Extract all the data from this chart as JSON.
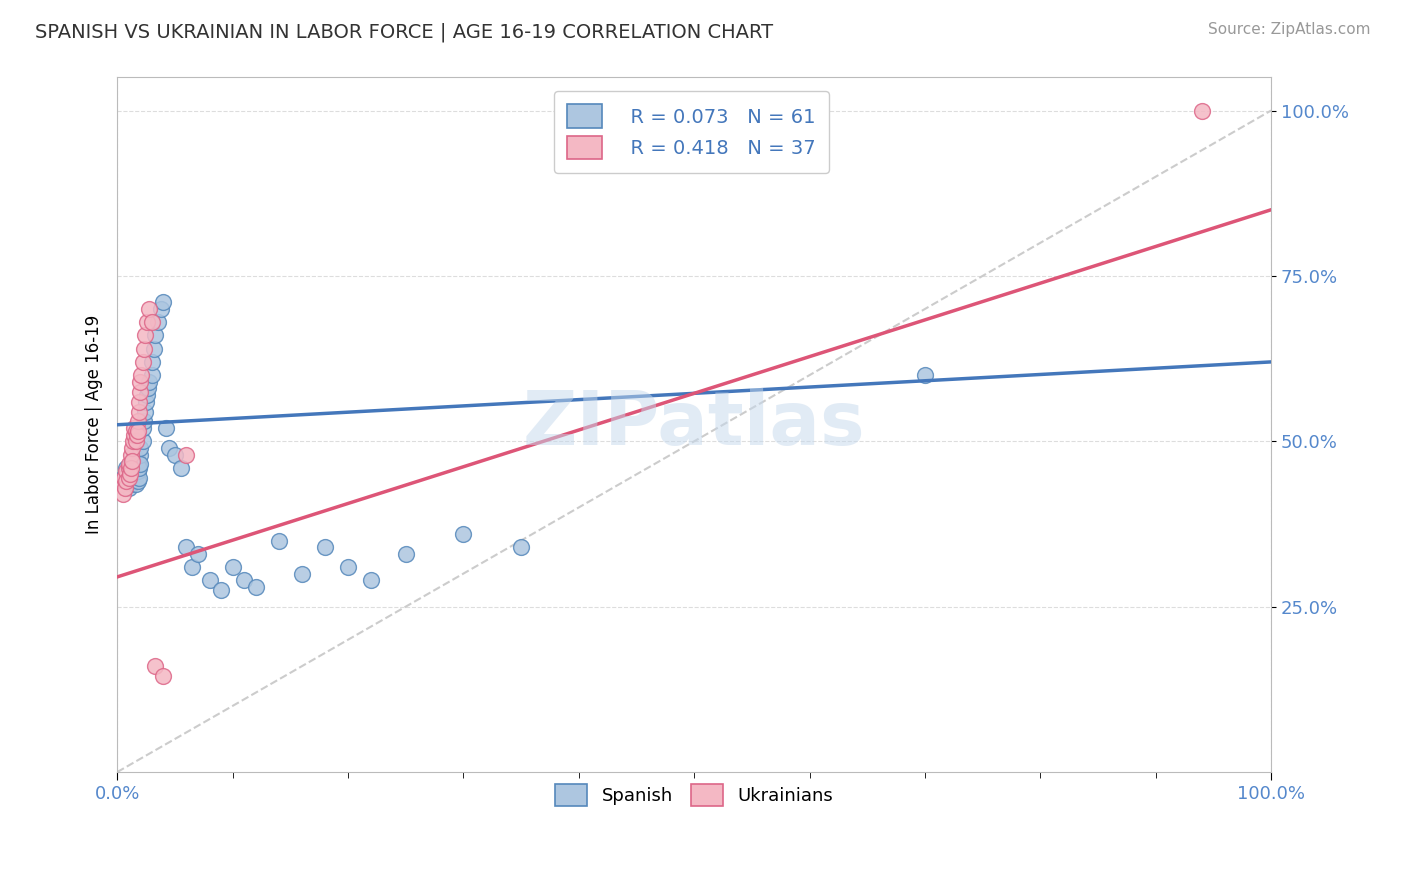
{
  "title": "SPANISH VS UKRAINIAN IN LABOR FORCE | AGE 16-19 CORRELATION CHART",
  "source_text": "Source: ZipAtlas.com",
  "ylabel": "In Labor Force | Age 16-19",
  "xlim": [
    0.0,
    1.0
  ],
  "ylim": [
    0.0,
    1.05
  ],
  "y_tick_positions": [
    0.25,
    0.5,
    0.75,
    1.0
  ],
  "watermark": "ZIPatlas",
  "legend_r1": "R = 0.073",
  "legend_n1": "N = 61",
  "legend_r2": "R = 0.418",
  "legend_n2": "N = 37",
  "spanish_color": "#adc6e0",
  "ukrainian_color": "#f4b8c4",
  "spanish_edge": "#5588bb",
  "ukrainian_edge": "#dd6688",
  "trendline1_color": "#4477bb",
  "trendline2_color": "#dd5577",
  "diagonal_color": "#cccccc",
  "grid_color": "#dddddd",
  "background_color": "#ffffff",
  "spanish_points_x": [
    0.005,
    0.008,
    0.01,
    0.01,
    0.01,
    0.012,
    0.012,
    0.013,
    0.013,
    0.014,
    0.015,
    0.015,
    0.015,
    0.016,
    0.016,
    0.017,
    0.017,
    0.018,
    0.018,
    0.018,
    0.019,
    0.019,
    0.02,
    0.02,
    0.02,
    0.022,
    0.022,
    0.023,
    0.024,
    0.025,
    0.026,
    0.027,
    0.028,
    0.03,
    0.03,
    0.032,
    0.033,
    0.035,
    0.038,
    0.04,
    0.042,
    0.045,
    0.05,
    0.055,
    0.06,
    0.065,
    0.07,
    0.08,
    0.09,
    0.1,
    0.11,
    0.12,
    0.14,
    0.16,
    0.18,
    0.2,
    0.22,
    0.25,
    0.3,
    0.35,
    0.7
  ],
  "spanish_points_y": [
    0.445,
    0.46,
    0.43,
    0.44,
    0.45,
    0.465,
    0.435,
    0.455,
    0.46,
    0.445,
    0.44,
    0.455,
    0.48,
    0.435,
    0.46,
    0.45,
    0.465,
    0.44,
    0.455,
    0.47,
    0.445,
    0.46,
    0.48,
    0.465,
    0.49,
    0.5,
    0.52,
    0.53,
    0.545,
    0.56,
    0.57,
    0.58,
    0.59,
    0.6,
    0.62,
    0.64,
    0.66,
    0.68,
    0.7,
    0.71,
    0.52,
    0.49,
    0.48,
    0.46,
    0.34,
    0.31,
    0.33,
    0.29,
    0.275,
    0.31,
    0.29,
    0.28,
    0.35,
    0.3,
    0.34,
    0.31,
    0.29,
    0.33,
    0.36,
    0.34,
    0.6
  ],
  "ukrainian_points_x": [
    0.003,
    0.005,
    0.006,
    0.007,
    0.008,
    0.008,
    0.01,
    0.01,
    0.01,
    0.011,
    0.012,
    0.012,
    0.013,
    0.013,
    0.014,
    0.015,
    0.015,
    0.016,
    0.016,
    0.017,
    0.018,
    0.018,
    0.019,
    0.019,
    0.02,
    0.02,
    0.021,
    0.022,
    0.023,
    0.024,
    0.026,
    0.028,
    0.03,
    0.033,
    0.04,
    0.06,
    0.94
  ],
  "ukrainian_points_y": [
    0.435,
    0.42,
    0.445,
    0.43,
    0.455,
    0.44,
    0.46,
    0.445,
    0.465,
    0.45,
    0.48,
    0.46,
    0.49,
    0.47,
    0.5,
    0.51,
    0.52,
    0.515,
    0.5,
    0.51,
    0.53,
    0.515,
    0.545,
    0.56,
    0.575,
    0.59,
    0.6,
    0.62,
    0.64,
    0.66,
    0.68,
    0.7,
    0.68,
    0.16,
    0.145,
    0.48,
    1.0
  ],
  "trendline_sp_x0": 0.0,
  "trendline_sp_y0": 0.525,
  "trendline_sp_x1": 1.0,
  "trendline_sp_y1": 0.62,
  "trendline_uk_x0": 0.0,
  "trendline_uk_y0": 0.295,
  "trendline_uk_x1": 1.0,
  "trendline_uk_y1": 0.85
}
